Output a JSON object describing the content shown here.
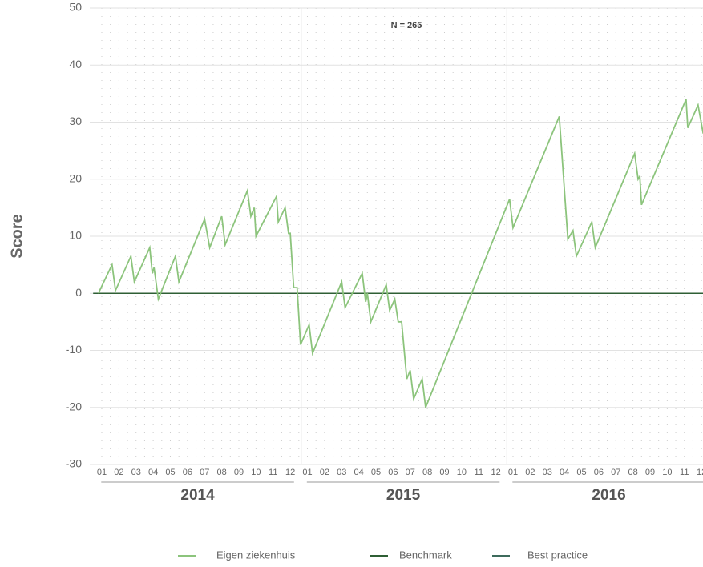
{
  "chart_data": {
    "type": "line",
    "ylabel": "Score",
    "annotation": "N = 265",
    "ylim": [
      -30,
      50
    ],
    "yticks": [
      -30,
      -20,
      -10,
      0,
      10,
      20,
      30,
      40,
      50
    ],
    "xlim": [
      0,
      36
    ],
    "grid": true,
    "months": [
      "01",
      "02",
      "03",
      "04",
      "05",
      "06",
      "07",
      "08",
      "09",
      "10",
      "11",
      "12",
      "01",
      "02",
      "03",
      "04",
      "05",
      "06",
      "07",
      "08",
      "09",
      "10",
      "11",
      "12",
      "01",
      "02",
      "03",
      "04",
      "05",
      "06",
      "07",
      "08",
      "09",
      "10",
      "11",
      "12"
    ],
    "years": [
      "2014",
      "2015",
      "2016"
    ],
    "legend": "bottom",
    "series": [
      {
        "name": "Eigen ziekenhuis",
        "color": "#8cc47c",
        "x": [
          0.3,
          1.1,
          1.3,
          2.2,
          2.4,
          3.3,
          3.45,
          3.55,
          3.8,
          4.8,
          5.0,
          6.5,
          6.8,
          7.5,
          7.7,
          9.0,
          9.2,
          9.4,
          9.5,
          10.7,
          10.8,
          11.2,
          11.4,
          11.5,
          11.7,
          11.9,
          12.1,
          12.6,
          12.8,
          14.5,
          14.7,
          15.7,
          15.9,
          16.0,
          16.2,
          17.1,
          17.3,
          17.6,
          17.8,
          18.0,
          18.3,
          18.5,
          18.7,
          19.2,
          19.4,
          24.3,
          24.5,
          27.2,
          27.7,
          28.0,
          28.2,
          29.1,
          29.3,
          31.6,
          31.8,
          31.9,
          32.0,
          34.6,
          34.7,
          35.3,
          35.6
        ],
        "values": [
          0,
          5,
          0.5,
          6.5,
          2,
          8,
          3.5,
          4.5,
          -1,
          6.5,
          2,
          13,
          8,
          13.5,
          8.5,
          18,
          13.5,
          15,
          10,
          17,
          12.5,
          15,
          10.5,
          10.5,
          1,
          1,
          -9,
          -5.5,
          -10.5,
          2,
          -2.5,
          3.5,
          -1.5,
          0,
          -5,
          1.5,
          -3,
          -1,
          -5,
          -5,
          -15,
          -13.5,
          -18.5,
          -15,
          -20,
          16.5,
          11.5,
          31,
          9.5,
          11,
          6.5,
          12.5,
          8,
          24.5,
          20,
          20.5,
          15.5,
          34,
          29,
          33,
          28
        ]
      },
      {
        "name": "Benchmark",
        "color": "#2f5f35",
        "x": [
          0,
          36
        ],
        "values": [
          0,
          0
        ]
      },
      {
        "name": "Best practice",
        "color": "#3d6b5c",
        "x": [
          0,
          36
        ],
        "values": [
          0,
          0
        ]
      }
    ]
  }
}
